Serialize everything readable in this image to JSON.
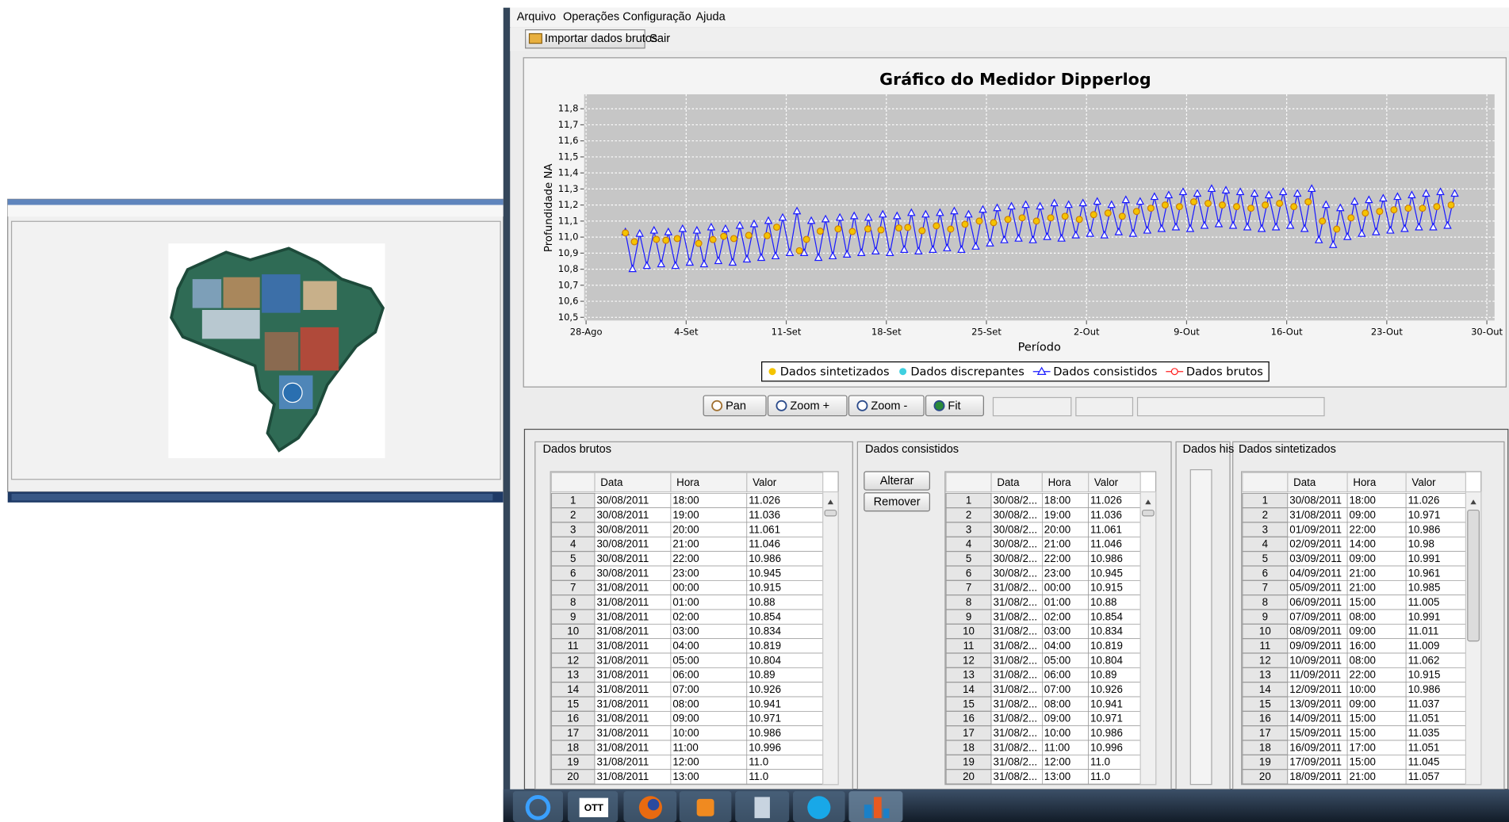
{
  "menu": [
    "Arquivo",
    "Operações",
    "Configuração",
    "Ajuda"
  ],
  "toolbar": [
    "Importar dados brutos",
    "Sair"
  ],
  "chart_data": {
    "type": "line",
    "title": "Gráfico do Medidor Dipperlog",
    "x_label": "Período",
    "y_label": "Profundidade NA",
    "xlim": [
      0,
      63.5
    ],
    "ylim": [
      10.48,
      11.89
    ],
    "xticks": [
      {
        "value": 0,
        "label": "28-Ago"
      },
      {
        "value": 7,
        "label": "4-Set"
      },
      {
        "value": 14,
        "label": "11-Set"
      },
      {
        "value": 21,
        "label": "18-Set"
      },
      {
        "value": 28,
        "label": "25-Set"
      },
      {
        "value": 35,
        "label": "2-Out"
      },
      {
        "value": 42,
        "label": "9-Out"
      },
      {
        "value": 49,
        "label": "16-Out"
      },
      {
        "value": 56,
        "label": "23-Out"
      },
      {
        "value": 63,
        "label": "30-Out"
      }
    ],
    "yticks": [
      {
        "value": 10.5,
        "label": "10,5"
      },
      {
        "value": 10.6,
        "label": "10,6"
      },
      {
        "value": 10.7,
        "label": "10,7"
      },
      {
        "value": 10.8,
        "label": "10,8"
      },
      {
        "value": 10.9,
        "label": "10,9"
      },
      {
        "value": 11.0,
        "label": "11,0"
      },
      {
        "value": 11.1,
        "label": "11,1"
      },
      {
        "value": 11.2,
        "label": "11,2"
      },
      {
        "value": 11.3,
        "label": "11,3"
      },
      {
        "value": 11.4,
        "label": "11,4"
      },
      {
        "value": 11.5,
        "label": "11,5"
      },
      {
        "value": 11.6,
        "label": "11,6"
      },
      {
        "value": 11.7,
        "label": "11,7"
      },
      {
        "value": 11.8,
        "label": "11,8"
      }
    ],
    "grid": true,
    "series": [
      {
        "name": "Dados sintetizados",
        "color": "#f4c400",
        "marker": "circle",
        "line": false,
        "x": [
          2.75,
          3.375,
          4.917,
          5.583,
          6.375,
          7.875,
          8.875,
          9.625,
          10.333,
          11.375,
          12.667,
          13.333,
          14.917,
          15.417,
          16.375,
          17.625,
          18.625,
          19.708,
          20.625,
          21.875,
          22.5,
          23.5,
          24.5,
          25.5,
          26.5,
          27.5,
          28.5,
          29.5,
          30.5,
          31.5,
          32.5,
          33.5,
          34.5,
          35.5,
          36.5,
          37.5,
          38.5,
          39.5,
          40.5,
          41.5,
          42.5,
          43.5,
          44.5,
          45.5,
          46.5,
          47.5,
          48.5,
          49.5,
          50.5,
          51.5,
          52.5,
          53.5,
          54.5,
          55.5,
          56.5,
          57.5,
          58.5,
          59.5,
          60.5
        ],
        "values": [
          11.026,
          10.971,
          10.986,
          10.98,
          10.991,
          10.961,
          10.985,
          11.005,
          10.991,
          11.011,
          11.009,
          11.062,
          10.915,
          10.986,
          11.037,
          11.051,
          11.035,
          11.051,
          11.045,
          11.057,
          11.06,
          11.04,
          11.07,
          11.05,
          11.08,
          11.1,
          11.09,
          11.11,
          11.12,
          11.1,
          11.12,
          11.13,
          11.11,
          11.14,
          11.15,
          11.13,
          11.16,
          11.18,
          11.2,
          11.19,
          11.22,
          11.21,
          11.2,
          11.19,
          11.18,
          11.2,
          11.21,
          11.19,
          11.22,
          11.1,
          11.05,
          11.12,
          11.15,
          11.16,
          11.17,
          11.18,
          11.18,
          11.19,
          11.2
        ]
      },
      {
        "name": "Dados discrepantes",
        "color": "#3fd0e0",
        "marker": "circle",
        "line": false,
        "x": [],
        "values": []
      },
      {
        "name": "Dados consistidos",
        "color": "#1a1aff",
        "marker": "triangle",
        "line": true,
        "x": [
          2.75,
          3.25,
          3.75,
          4.25,
          4.75,
          5.25,
          5.75,
          6.25,
          6.75,
          7.25,
          7.75,
          8.25,
          8.75,
          9.25,
          9.75,
          10.25,
          10.75,
          11.25,
          11.75,
          12.25,
          12.75,
          13.25,
          13.75,
          14.25,
          14.75,
          15.25,
          15.75,
          16.25,
          16.75,
          17.25,
          17.75,
          18.25,
          18.75,
          19.25,
          19.75,
          20.25,
          20.75,
          21.25,
          21.75,
          22.25,
          22.75,
          23.25,
          23.75,
          24.25,
          24.75,
          25.25,
          25.75,
          26.25,
          26.75,
          27.25,
          27.75,
          28.25,
          28.75,
          29.25,
          29.75,
          30.25,
          30.75,
          31.25,
          31.75,
          32.25,
          32.75,
          33.25,
          33.75,
          34.25,
          34.75,
          35.25,
          35.75,
          36.25,
          36.75,
          37.25,
          37.75,
          38.25,
          38.75,
          39.25,
          39.75,
          40.25,
          40.75,
          41.25,
          41.75,
          42.25,
          42.75,
          43.25,
          43.75,
          44.25,
          44.75,
          45.25,
          45.75,
          46.25,
          46.75,
          47.25,
          47.75,
          48.25,
          48.75,
          49.25,
          49.75,
          50.25,
          50.75,
          51.25,
          51.75,
          52.25,
          52.75,
          53.25,
          53.75,
          54.25,
          54.75,
          55.25,
          55.75,
          56.25,
          56.75,
          57.25,
          57.75,
          58.25,
          58.75,
          59.25,
          59.75,
          60.25,
          60.75
        ],
        "values": [
          11.03,
          10.8,
          11.02,
          10.82,
          11.04,
          10.83,
          11.03,
          10.82,
          11.05,
          10.84,
          11.04,
          10.83,
          11.06,
          10.85,
          11.05,
          10.84,
          11.07,
          10.86,
          11.08,
          10.87,
          11.1,
          10.88,
          11.12,
          10.9,
          11.16,
          10.9,
          11.1,
          10.87,
          11.11,
          10.88,
          11.12,
          10.89,
          11.13,
          10.9,
          11.12,
          10.91,
          11.14,
          10.9,
          11.13,
          10.92,
          11.15,
          10.91,
          11.14,
          10.92,
          11.15,
          10.93,
          11.16,
          10.92,
          11.14,
          10.94,
          11.17,
          10.96,
          11.18,
          10.98,
          11.19,
          10.99,
          11.2,
          10.98,
          11.19,
          11.0,
          11.21,
          10.99,
          11.2,
          11.01,
          11.21,
          11.02,
          11.22,
          11.01,
          11.2,
          11.03,
          11.23,
          11.02,
          11.22,
          11.04,
          11.25,
          11.05,
          11.26,
          11.06,
          11.28,
          11.05,
          11.27,
          11.07,
          11.3,
          11.08,
          11.29,
          11.07,
          11.28,
          11.06,
          11.27,
          11.05,
          11.26,
          11.06,
          11.28,
          11.07,
          11.27,
          11.05,
          11.3,
          10.98,
          11.2,
          10.95,
          11.18,
          11.0,
          11.22,
          11.02,
          11.23,
          11.03,
          11.24,
          11.04,
          11.25,
          11.05,
          11.26,
          11.06,
          11.27,
          11.06,
          11.28,
          11.07,
          11.27
        ]
      },
      {
        "name": "Dados brutos",
        "color": "#ff2020",
        "marker": "circle",
        "line": true,
        "x": [],
        "values": []
      }
    ]
  },
  "chart_buttons": [
    "Pan",
    "Zoom +",
    "Zoom -",
    "Fit"
  ],
  "edit_buttons": [
    "Alterar",
    "Remover"
  ],
  "panel_his": "Dados his",
  "taskbar_label": "OTT",
  "tables": [
    {
      "title": "Dados brutos",
      "columns": [
        "Data",
        "Hora",
        "Valor"
      ],
      "rows": [
        [
          "1",
          "30/08/2011",
          "18:00",
          "11.026"
        ],
        [
          "2",
          "30/08/2011",
          "19:00",
          "11.036"
        ],
        [
          "3",
          "30/08/2011",
          "20:00",
          "11.061"
        ],
        [
          "4",
          "30/08/2011",
          "21:00",
          "11.046"
        ],
        [
          "5",
          "30/08/2011",
          "22:00",
          "10.986"
        ],
        [
          "6",
          "30/08/2011",
          "23:00",
          "10.945"
        ],
        [
          "7",
          "31/08/2011",
          "00:00",
          "10.915"
        ],
        [
          "8",
          "31/08/2011",
          "01:00",
          "10.88"
        ],
        [
          "9",
          "31/08/2011",
          "02:00",
          "10.854"
        ],
        [
          "10",
          "31/08/2011",
          "03:00",
          "10.834"
        ],
        [
          "11",
          "31/08/2011",
          "04:00",
          "10.819"
        ],
        [
          "12",
          "31/08/2011",
          "05:00",
          "10.804"
        ],
        [
          "13",
          "31/08/2011",
          "06:00",
          "10.89"
        ],
        [
          "14",
          "31/08/2011",
          "07:00",
          "10.926"
        ],
        [
          "15",
          "31/08/2011",
          "08:00",
          "10.941"
        ],
        [
          "16",
          "31/08/2011",
          "09:00",
          "10.971"
        ],
        [
          "17",
          "31/08/2011",
          "10:00",
          "10.986"
        ],
        [
          "18",
          "31/08/2011",
          "11:00",
          "10.996"
        ],
        [
          "19",
          "31/08/2011",
          "12:00",
          "11.0"
        ],
        [
          "20",
          "31/08/2011",
          "13:00",
          "11.0"
        ]
      ]
    },
    {
      "title": "Dados consistidos",
      "columns": [
        "Data",
        "Hora",
        "Valor"
      ],
      "rows": [
        [
          "1",
          "30/08/2...",
          "18:00",
          "11.026"
        ],
        [
          "2",
          "30/08/2...",
          "19:00",
          "11.036"
        ],
        [
          "3",
          "30/08/2...",
          "20:00",
          "11.061"
        ],
        [
          "4",
          "30/08/2...",
          "21:00",
          "11.046"
        ],
        [
          "5",
          "30/08/2...",
          "22:00",
          "10.986"
        ],
        [
          "6",
          "30/08/2...",
          "23:00",
          "10.945"
        ],
        [
          "7",
          "31/08/2...",
          "00:00",
          "10.915"
        ],
        [
          "8",
          "31/08/2...",
          "01:00",
          "10.88"
        ],
        [
          "9",
          "31/08/2...",
          "02:00",
          "10.854"
        ],
        [
          "10",
          "31/08/2...",
          "03:00",
          "10.834"
        ],
        [
          "11",
          "31/08/2...",
          "04:00",
          "10.819"
        ],
        [
          "12",
          "31/08/2...",
          "05:00",
          "10.804"
        ],
        [
          "13",
          "31/08/2...",
          "06:00",
          "10.89"
        ],
        [
          "14",
          "31/08/2...",
          "07:00",
          "10.926"
        ],
        [
          "15",
          "31/08/2...",
          "08:00",
          "10.941"
        ],
        [
          "16",
          "31/08/2...",
          "09:00",
          "10.971"
        ],
        [
          "17",
          "31/08/2...",
          "10:00",
          "10.986"
        ],
        [
          "18",
          "31/08/2...",
          "11:00",
          "10.996"
        ],
        [
          "19",
          "31/08/2...",
          "12:00",
          "11.0"
        ],
        [
          "20",
          "31/08/2...",
          "13:00",
          "11.0"
        ]
      ]
    },
    {
      "title": "Dados sintetizados",
      "columns": [
        "Data",
        "Hora",
        "Valor"
      ],
      "rows": [
        [
          "1",
          "30/08/2011",
          "18:00",
          "11.026"
        ],
        [
          "2",
          "31/08/2011",
          "09:00",
          "10.971"
        ],
        [
          "3",
          "01/09/2011",
          "22:00",
          "10.986"
        ],
        [
          "4",
          "02/09/2011",
          "14:00",
          "10.98"
        ],
        [
          "5",
          "03/09/2011",
          "09:00",
          "10.991"
        ],
        [
          "6",
          "04/09/2011",
          "21:00",
          "10.961"
        ],
        [
          "7",
          "05/09/2011",
          "21:00",
          "10.985"
        ],
        [
          "8",
          "06/09/2011",
          "15:00",
          "11.005"
        ],
        [
          "9",
          "07/09/2011",
          "08:00",
          "10.991"
        ],
        [
          "10",
          "08/09/2011",
          "09:00",
          "11.011"
        ],
        [
          "11",
          "09/09/2011",
          "16:00",
          "11.009"
        ],
        [
          "12",
          "10/09/2011",
          "08:00",
          "11.062"
        ],
        [
          "13",
          "11/09/2011",
          "22:00",
          "10.915"
        ],
        [
          "14",
          "12/09/2011",
          "10:00",
          "10.986"
        ],
        [
          "15",
          "13/09/2011",
          "09:00",
          "11.037"
        ],
        [
          "16",
          "14/09/2011",
          "15:00",
          "11.051"
        ],
        [
          "17",
          "15/09/2011",
          "15:00",
          "11.035"
        ],
        [
          "18",
          "16/09/2011",
          "17:00",
          "11.051"
        ],
        [
          "19",
          "17/09/2011",
          "15:00",
          "11.045"
        ],
        [
          "20",
          "18/09/2011",
          "21:00",
          "11.057"
        ]
      ]
    }
  ]
}
